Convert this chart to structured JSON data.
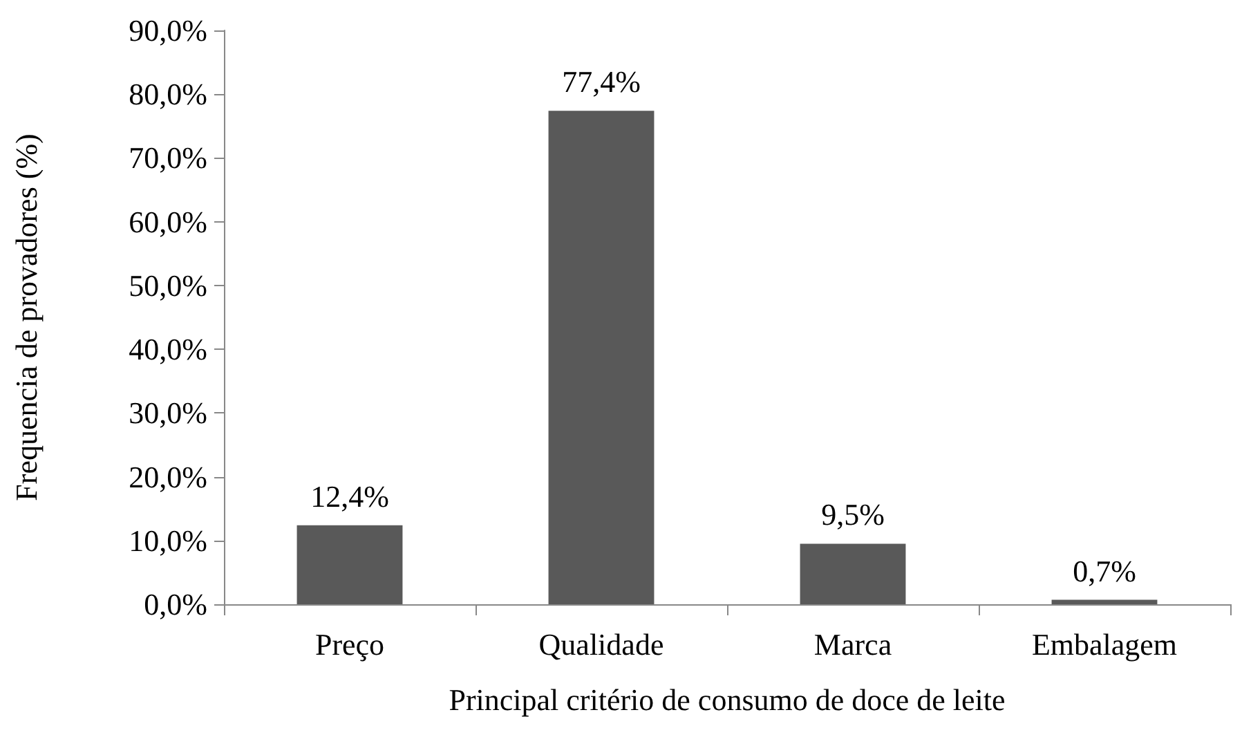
{
  "chart_data": {
    "type": "bar",
    "xlabel": "Principal critério de consumo de doce de leite",
    "ylabel": "Frequencia de provadores (%)",
    "categories": [
      "Preço",
      "Qualidade",
      "Marca",
      "Embalagem"
    ],
    "values": [
      12.4,
      77.4,
      9.5,
      0.7
    ],
    "color": "#595959",
    "value_labels": [
      "12,4%",
      "77,4%",
      "9,5%",
      "0,7%"
    ],
    "ylim": [
      0,
      90
    ],
    "yticks": [
      {
        "value": 0,
        "label": "0,0%"
      },
      {
        "value": 10,
        "label": "10,0%"
      },
      {
        "value": 20,
        "label": "20,0%"
      },
      {
        "value": 30,
        "label": "30,0%"
      },
      {
        "value": 40,
        "label": "40,0%"
      },
      {
        "value": 50,
        "label": "50,0%"
      },
      {
        "value": 60,
        "label": "60,0%"
      },
      {
        "value": 70,
        "label": "70,0%"
      },
      {
        "value": 80,
        "label": "80,0%"
      },
      {
        "value": 90,
        "label": "90,0%"
      }
    ],
    "grid": false
  }
}
